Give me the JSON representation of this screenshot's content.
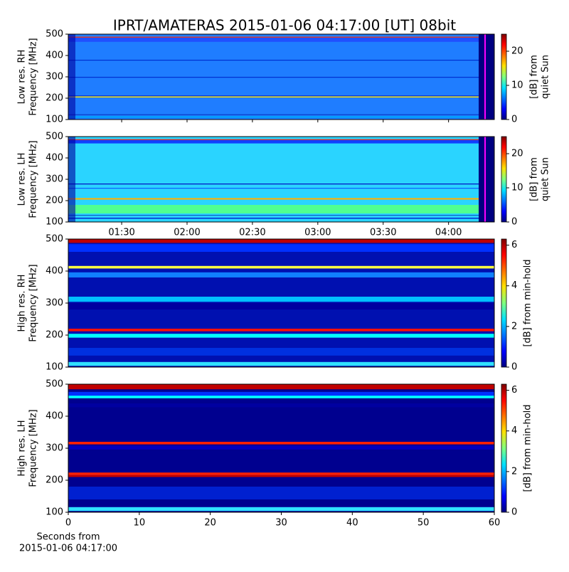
{
  "title": "IPRT/AMATERAS 2015-01-06 04:17:00 [UT]   08bit",
  "chart_data": [
    {
      "type": "spectrogram",
      "ylabel": [
        "Low res. RH",
        "Frequency [MHz]"
      ],
      "ylim": [
        100,
        500
      ],
      "yticks": [
        100,
        200,
        300,
        400,
        500
      ],
      "xlim": [
        65.5,
        261
      ],
      "xticks": [
        90,
        120,
        150,
        180,
        210,
        240
      ],
      "colorbar_label": [
        "[dB] from",
        "quiet Sun"
      ],
      "clim": [
        0,
        25
      ],
      "cticks": [
        0,
        10,
        20
      ]
    },
    {
      "type": "spectrogram",
      "ylabel": [
        "Low res. LH",
        "Frequency [MHz]"
      ],
      "ylim": [
        100,
        500
      ],
      "yticks": [
        100,
        200,
        300,
        400,
        500
      ],
      "xlim": [
        65.5,
        261
      ],
      "xticks": [
        {
          "value": 90,
          "label": "01:30"
        },
        {
          "value": 120,
          "label": "02:00"
        },
        {
          "value": 150,
          "label": "02:30"
        },
        {
          "value": 180,
          "label": "03:00"
        },
        {
          "value": 210,
          "label": "03:30"
        },
        {
          "value": 240,
          "label": "04:00"
        }
      ],
      "colorbar_label": [
        "[dB] from",
        "quiet Sun"
      ],
      "clim": [
        0,
        25
      ],
      "cticks": [
        0,
        10,
        20
      ]
    },
    {
      "type": "spectrogram",
      "ylabel": [
        "High res. RH",
        "Frequency [MHz]"
      ],
      "ylim": [
        100,
        500
      ],
      "yticks": [
        100,
        200,
        300,
        400,
        500
      ],
      "xlim": [
        0,
        60
      ],
      "colorbar_label": [
        "[dB] from min-hold"
      ],
      "clim": [
        0,
        6.3
      ],
      "cticks": [
        0,
        2,
        4,
        6
      ]
    },
    {
      "type": "spectrogram",
      "ylabel": [
        "High res. LH",
        "Frequency [MHz]"
      ],
      "ylim": [
        100,
        500
      ],
      "yticks": [
        100,
        200,
        300,
        400,
        500
      ],
      "xlim": [
        0,
        60
      ],
      "xticks": [
        0,
        10,
        20,
        30,
        40,
        50,
        60
      ],
      "xlabel": [
        "Seconds from",
        "2015-01-06 04:17:00"
      ],
      "colorbar_label": [
        "[dB] from min-hold"
      ],
      "clim": [
        0,
        6.3
      ],
      "cticks": [
        0,
        2,
        4,
        6
      ]
    }
  ]
}
